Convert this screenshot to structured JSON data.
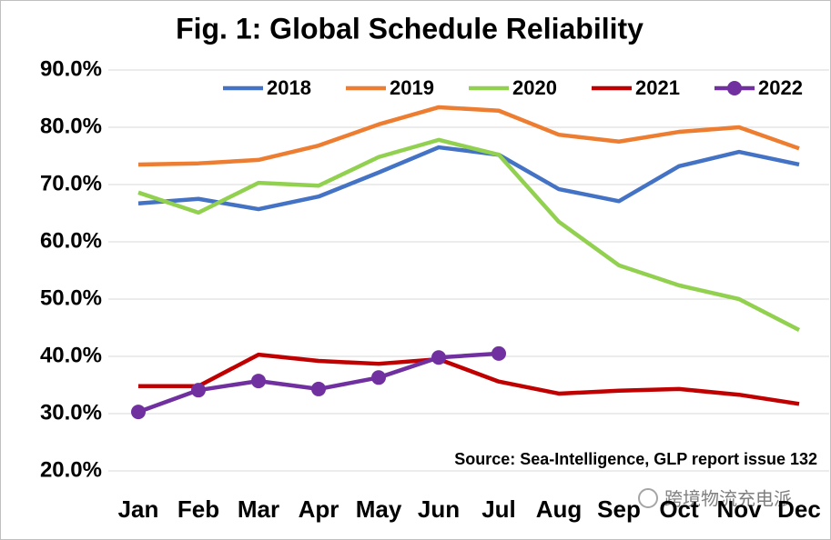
{
  "chart_data": {
    "type": "line",
    "title": "Fig. 1: Global Schedule Reliability",
    "categories": [
      "Jan",
      "Feb",
      "Mar",
      "Apr",
      "May",
      "Jun",
      "Jul",
      "Aug",
      "Sep",
      "Oct",
      "Nov",
      "Dec"
    ],
    "series": [
      {
        "name": "2018",
        "color": "#4472c4",
        "values": [
          66.7,
          67.5,
          65.7,
          67.9,
          72.1,
          76.5,
          75.2,
          69.2,
          67.1,
          73.2,
          75.7,
          73.5
        ]
      },
      {
        "name": "2019",
        "color": "#ed7d31",
        "values": [
          73.5,
          73.7,
          74.3,
          76.8,
          80.5,
          83.5,
          82.9,
          78.7,
          77.5,
          79.2,
          80.0,
          76.3
        ]
      },
      {
        "name": "2020",
        "color": "#92d050",
        "values": [
          68.6,
          65.1,
          70.3,
          69.8,
          74.8,
          77.8,
          75.2,
          63.5,
          55.9,
          52.4,
          50.0,
          44.6
        ]
      },
      {
        "name": "2021",
        "color": "#c00000",
        "values": [
          34.8,
          34.8,
          40.3,
          39.2,
          38.7,
          39.5,
          35.6,
          33.5,
          34.0,
          34.3,
          33.3,
          31.7
        ]
      },
      {
        "name": "2022",
        "color": "#7030a0",
        "markers": true,
        "values": [
          30.3,
          34.1,
          35.7,
          34.3,
          36.3,
          39.8,
          40.5,
          null,
          null,
          null,
          null,
          null
        ]
      }
    ],
    "ylim": [
      20,
      90
    ],
    "yticks": [
      {
        "value": 20,
        "label": "20.0%"
      },
      {
        "value": 30,
        "label": "30.0%"
      },
      {
        "value": 40,
        "label": "40.0%"
      },
      {
        "value": 50,
        "label": "50.0%"
      },
      {
        "value": 60,
        "label": "60.0%"
      },
      {
        "value": 70,
        "label": "70.0%"
      },
      {
        "value": 80,
        "label": "80.0%"
      },
      {
        "value": 90,
        "label": "90.0%"
      }
    ],
    "grid": true,
    "legend": "top",
    "annotation": "Source: Sea-Intelligence, GLP report issue 132",
    "watermark": "跨境物流充电派"
  }
}
